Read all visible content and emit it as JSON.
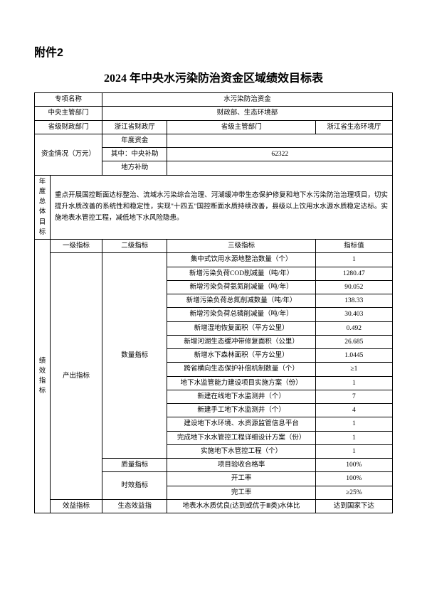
{
  "attachment": "附件2",
  "title": "2024 年中央水污染防治资金区域绩效目标表",
  "header": {
    "project_name_label": "专项名称",
    "project_name_value": "水污染防治资金",
    "central_dept_label": "中央主管部门",
    "central_dept_value": "财政部、生态环境部",
    "prov_finance_label": "省级财政部门",
    "prov_finance_value": "浙江省财政厅",
    "prov_dept_label": "省级主管部门",
    "prov_dept_value": "浙江省生态环境厅"
  },
  "funds": {
    "label": "资金情况（万元）",
    "annual_label": "年度资金",
    "central_label": "其中：中央补助",
    "central_value": "62322",
    "local_label": "地方补助"
  },
  "overall": {
    "label": "年度总体目标",
    "text": "重点开展国控断面达标整治、流域水污染综合治理、河湖缓冲带生态保护修复和地下水污染防治治理项目，切实提升水质改善的系统性和稳定性，实现\"十四五\"国控断面水质持续改善，县级以上饮用水水源水质稳定达标。实施地表水管控工程，减低地下水风险隐患。"
  },
  "indicators": {
    "perf_label": "绩效指标",
    "level1_label": "一级指标",
    "level2_label": "二级指标",
    "level3_label": "三级指标",
    "value_label": "指标值",
    "output_label": "产出指标",
    "quantity_label": "数量指标",
    "quality_label": "质量指标",
    "time_label": "时效指标",
    "benefit_label": "效益指标",
    "eco_label": "生态效益指",
    "rows": [
      {
        "name": "集中式饮用水源地整治数量（个）",
        "value": "1"
      },
      {
        "name": "新增污染负荷COD削减量（吨/年）",
        "value": "1280.47"
      },
      {
        "name": "新增污染负荷氨氮削减量（吨/年）",
        "value": "90.052"
      },
      {
        "name": "新增污染负荷总氮削减数量（吨/年）",
        "value": "138.33"
      },
      {
        "name": "新增污染负荷总磷削减量（吨/年）",
        "value": "30.403"
      },
      {
        "name": "新增湿地恢复面积（平方公里）",
        "value": "0.492"
      },
      {
        "name": "新增河湖生态缓冲带修复面积（公里）",
        "value": "26.685"
      },
      {
        "name": "新增水下森林面积（平方公里）",
        "value": "1.0445"
      },
      {
        "name": "跨省横向生态保护补偿机制数量（个）",
        "value": "≥1"
      },
      {
        "name": "地下水监管能力建设项目实施方案（份）",
        "value": "1"
      },
      {
        "name": "新建在线地下水监测井（个）",
        "value": "7"
      },
      {
        "name": "新建手工地下水监测井（个）",
        "value": "4"
      },
      {
        "name": "建设地下水环境、水资源监管信息平台",
        "value": "1"
      },
      {
        "name": "完成地下水水管控工程详细设计方案（份）",
        "value": "1"
      },
      {
        "name": "实施地下水管控工程（个）",
        "value": "1"
      }
    ],
    "quality_row": {
      "name": "项目验收合格率",
      "value": "100%"
    },
    "time_rows": [
      {
        "name": "开工率",
        "value": "100%"
      },
      {
        "name": "完工率",
        "value": "≥25%"
      }
    ],
    "benefit_row": {
      "name": "地表水水质优良(达到或优于Ⅲ类)水体比",
      "value": "达到国家下达"
    }
  }
}
